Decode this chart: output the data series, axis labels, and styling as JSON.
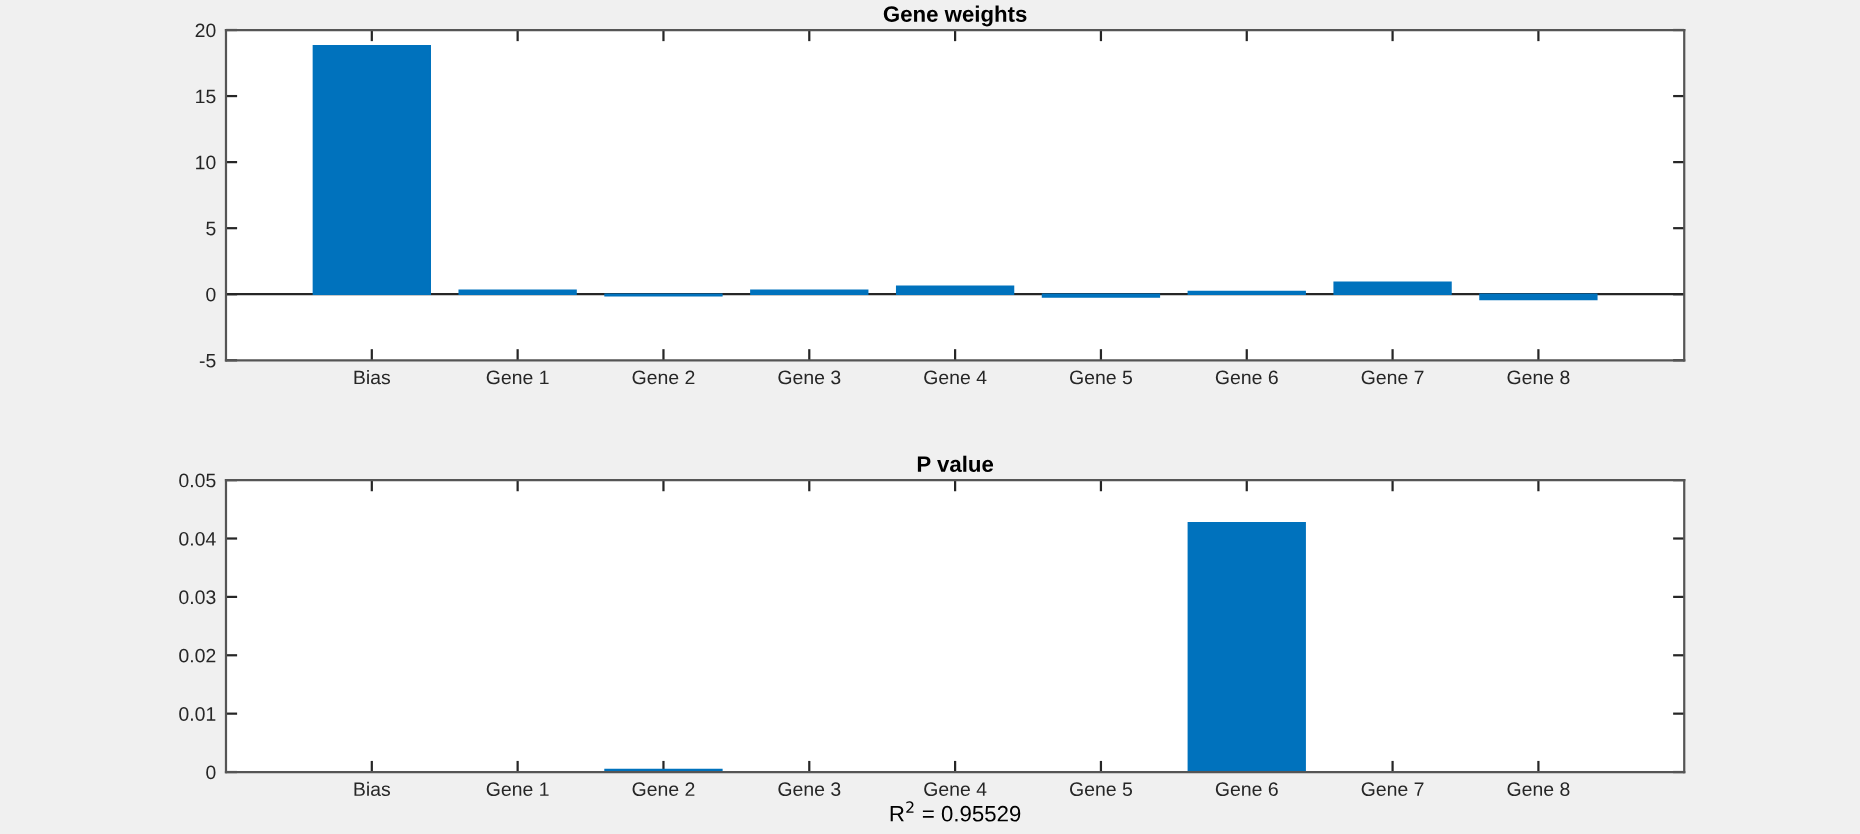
{
  "chart_data": [
    {
      "type": "bar",
      "title": "Gene weights",
      "categories": [
        "Bias",
        "Gene 1",
        "Gene 2",
        "Gene 3",
        "Gene 4",
        "Gene 5",
        "Gene 6",
        "Gene 7",
        "Gene 8"
      ],
      "series": [
        {
          "color": "#0072bd",
          "values": [
            18.8,
            0.3,
            -0.1,
            0.3,
            0.6,
            -0.2,
            0.2,
            0.9,
            -0.4
          ]
        }
      ],
      "ylim": [
        -5,
        20
      ],
      "yticks": [
        -5,
        0,
        5,
        10,
        15,
        20
      ],
      "grid": false,
      "legend": false,
      "ref_lines": [
        {
          "axis": "y",
          "value": 0,
          "color": "#262626"
        }
      ]
    },
    {
      "type": "bar",
      "title": "P value",
      "xlabel": "R$^{2}$ = 0.95529",
      "categories": [
        "Bias",
        "Gene 1",
        "Gene 2",
        "Gene 3",
        "Gene 4",
        "Gene 5",
        "Gene 6",
        "Gene 7",
        "Gene 8"
      ],
      "series": [
        {
          "color": "#0072bd",
          "values": [
            0,
            0,
            0.0004,
            0,
            0,
            0,
            0.0427,
            0,
            0
          ]
        }
      ],
      "ylim": [
        0,
        0.05
      ],
      "yticks": [
        0,
        0.01,
        0.02,
        0.03,
        0.04,
        0.05
      ],
      "grid": false,
      "legend": false
    }
  ]
}
